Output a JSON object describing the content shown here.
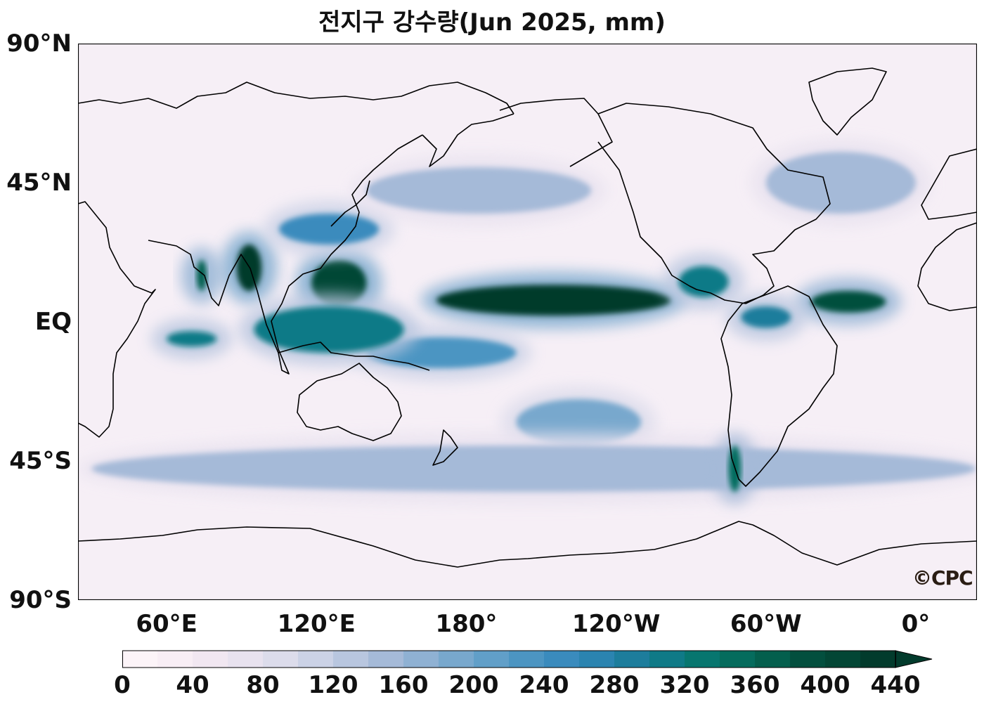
{
  "title": "전지구 강수량(Jun 2025, mm)",
  "watermark": "©CPC",
  "lat_labels": [
    {
      "text": "90°N",
      "lat": 90
    },
    {
      "text": "45°N",
      "lat": 45
    },
    {
      "text": "EQ",
      "lat": 0
    },
    {
      "text": "45°S",
      "lat": -45
    },
    {
      "text": "90°S",
      "lat": -90
    }
  ],
  "lon_labels": [
    {
      "text": "60°E",
      "lon": 60
    },
    {
      "text": "120°E",
      "lon": 120
    },
    {
      "text": "180°",
      "lon": 180
    },
    {
      "text": "120°W",
      "lon": 240
    },
    {
      "text": "60°W",
      "lon": 300
    },
    {
      "text": "0°",
      "lon": 360
    }
  ],
  "map": {
    "lon_min": 24.5,
    "lon_max": 384.5,
    "lat_min": -90,
    "lat_max": 90
  },
  "colorbar": {
    "ticks": [
      "0",
      "40",
      "80",
      "120",
      "160",
      "200",
      "240",
      "280",
      "320",
      "360",
      "400",
      "440"
    ],
    "tick_values": [
      0,
      40,
      80,
      120,
      160,
      200,
      240,
      280,
      320,
      360,
      400,
      440
    ],
    "vmin": 0,
    "vmax": 440,
    "extend": "max",
    "colors": [
      "#fcf4f8",
      "#f8eef5",
      "#f1e7f1",
      "#e8e2ef",
      "#dcdceb",
      "#cbd2e6",
      "#b8c6df",
      "#a5bad8",
      "#8fb1d3",
      "#78a8cd",
      "#619fc8",
      "#4c95c2",
      "#3a8bbd",
      "#2b84b0",
      "#1d7d9c",
      "#0f7a87",
      "#07766f",
      "#056c5d",
      "#045f4d",
      "#034f3e",
      "#034635",
      "#023b2c"
    ]
  },
  "precip_bands": [
    {
      "name": "itcz-pacific",
      "lon": [
        168,
        262
      ],
      "lat": [
        2,
        12
      ],
      "level": 440
    },
    {
      "name": "itcz-atlantic",
      "lon": [
        318,
        348
      ],
      "lat": [
        3,
        10
      ],
      "level": 400
    },
    {
      "name": "bay-of-bengal",
      "lon": [
        88,
        98
      ],
      "lat": [
        10,
        25
      ],
      "level": 440
    },
    {
      "name": "philippine-sea",
      "lon": [
        118,
        140
      ],
      "lat": [
        5,
        20
      ],
      "level": 420
    },
    {
      "name": "western-ghats",
      "lon": [
        72,
        76
      ],
      "lat": [
        10,
        20
      ],
      "level": 380
    },
    {
      "name": "meiyu-front",
      "lon": [
        105,
        145
      ],
      "lat": [
        25,
        35
      ],
      "level": 260
    },
    {
      "name": "spcz",
      "lon": [
        140,
        200
      ],
      "lat": [
        -15,
        -5
      ],
      "level": 240
    },
    {
      "name": "south-pacific-storm",
      "lon": [
        200,
        250
      ],
      "lat": [
        -40,
        -25
      ],
      "level": 200
    },
    {
      "name": "southern-ocean",
      "lon": [
        30,
        384
      ],
      "lat": [
        -55,
        -40
      ],
      "level": 150
    },
    {
      "name": "north-pacific-storm",
      "lon": [
        140,
        230
      ],
      "lat": [
        35,
        50
      ],
      "level": 160
    },
    {
      "name": "north-atlantic-storm",
      "lon": [
        300,
        360
      ],
      "lat": [
        35,
        55
      ],
      "level": 150
    },
    {
      "name": "chile-coast",
      "lon": [
        285,
        290
      ],
      "lat": [
        -55,
        -40
      ],
      "level": 360
    },
    {
      "name": "central-america",
      "lon": [
        265,
        285
      ],
      "lat": [
        8,
        18
      ],
      "level": 320
    },
    {
      "name": "amazon-north",
      "lon": [
        290,
        310
      ],
      "lat": [
        -2,
        5
      ],
      "level": 300
    },
    {
      "name": "indian-ocean-south",
      "lon": [
        60,
        80
      ],
      "lat": [
        -8,
        -3
      ],
      "level": 320
    },
    {
      "name": "maritime-continent",
      "lon": [
        95,
        155
      ],
      "lat": [
        -10,
        5
      ],
      "level": 320
    }
  ]
}
